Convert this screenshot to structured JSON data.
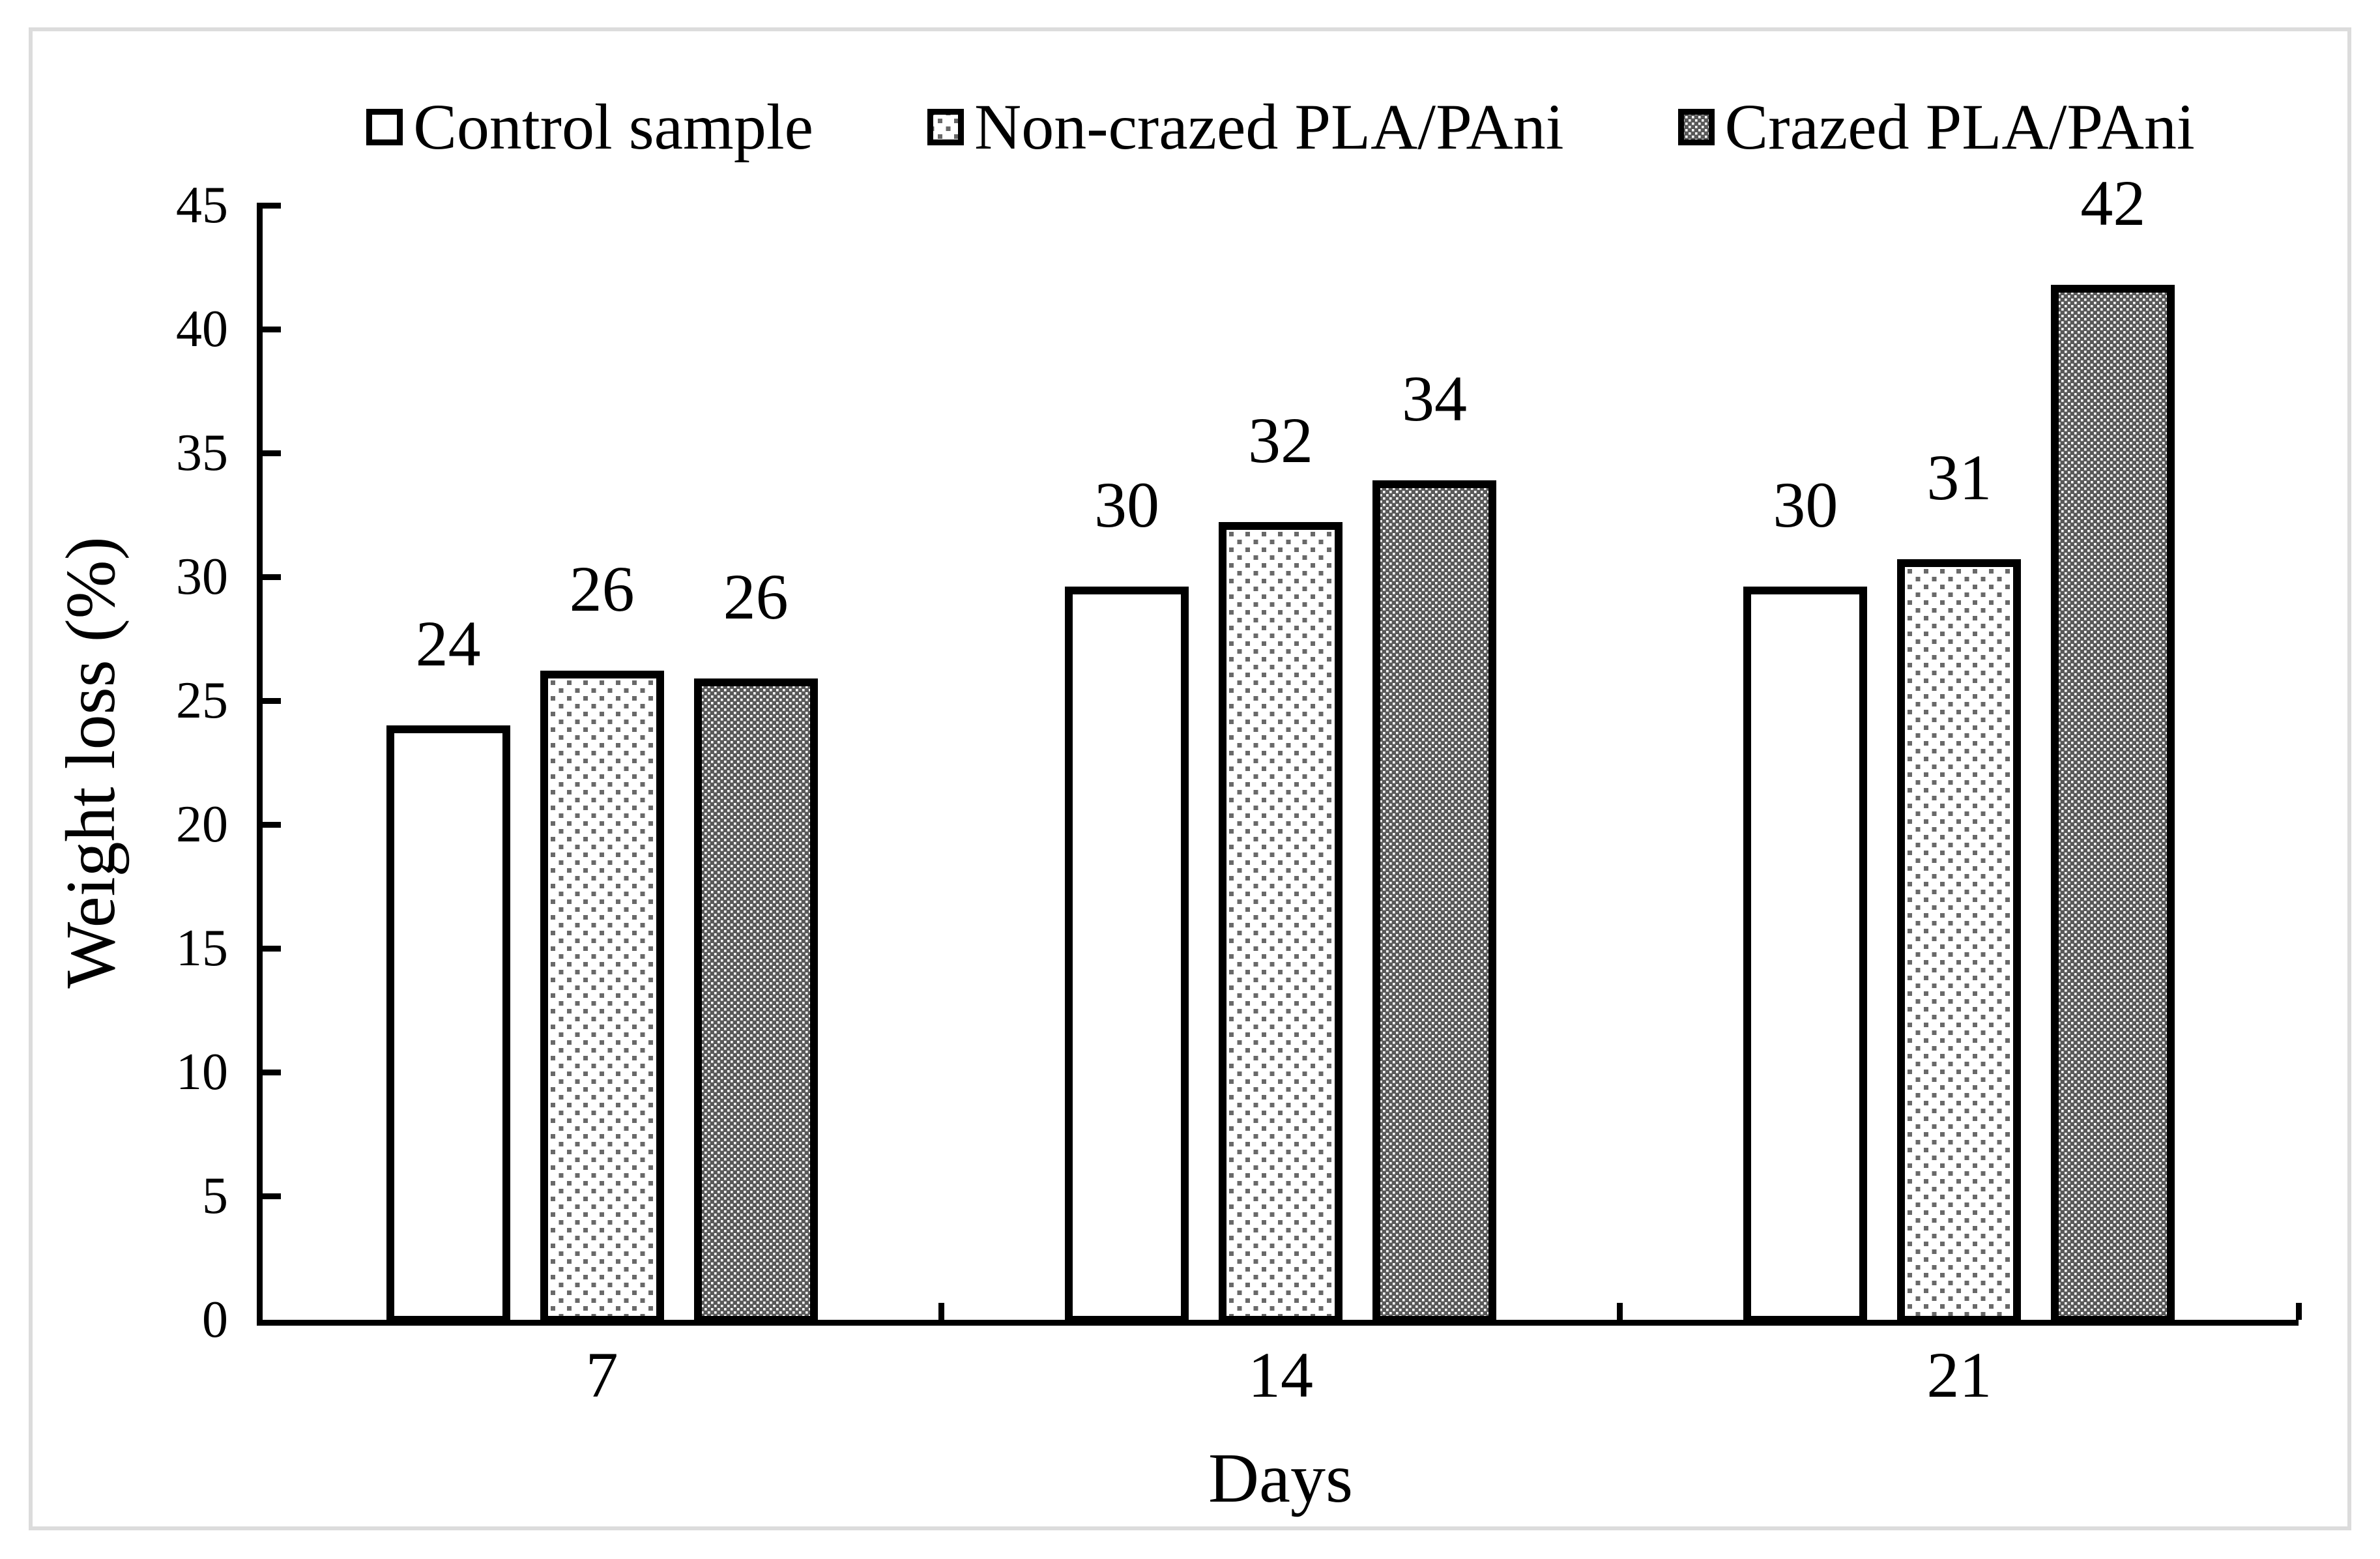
{
  "chart_data": {
    "type": "bar",
    "title": "",
    "xlabel": "Days",
    "ylabel": "Weight loss (%)",
    "categories": [
      "7",
      "14",
      "21"
    ],
    "series": [
      {
        "name": "Control sample",
        "fill": "plain",
        "values": [
          24.0,
          29.6,
          29.6
        ],
        "labels": [
          "24",
          "30",
          "30"
        ]
      },
      {
        "name": "Non-crazed PLA/PAni",
        "fill": "dots",
        "values": [
          26.2,
          32.2,
          30.7
        ],
        "labels": [
          "26",
          "32",
          "31"
        ]
      },
      {
        "name": "Crazed PLA/PAni",
        "fill": "weave",
        "values": [
          25.9,
          33.9,
          41.8
        ],
        "labels": [
          "26",
          "34",
          "42"
        ]
      }
    ],
    "ylim": [
      0,
      45
    ],
    "yticks": [
      0,
      5,
      10,
      15,
      20,
      25,
      30,
      35,
      40,
      45
    ],
    "grid": false,
    "legend_position": "top-center"
  },
  "colors": {
    "bar_outline": "#000000",
    "dots_gray": "#696969",
    "weave_gray": "#595959",
    "frame_gray": "#dcdcdc",
    "background": "#ffffff"
  }
}
